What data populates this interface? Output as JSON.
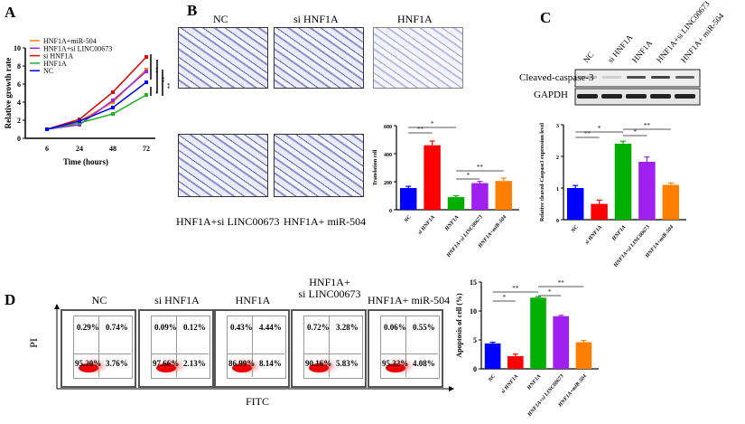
{
  "panels": {
    "A": "A",
    "B": "B",
    "C": "C",
    "D": "D"
  },
  "panelA": {
    "legend": [
      "HNF1A+miR-504",
      "HNF1A+si LINC00673",
      "si HNF1A",
      "HNF1A",
      "NC"
    ],
    "ylabel": "Relative growth rate",
    "xlabel": "Time  (hours)",
    "sig": [
      "**",
      "**",
      "*",
      "**"
    ]
  },
  "panelB": {
    "images": [
      "NC",
      "si HNF1A",
      "HNF1A",
      "HNF1A+si LINC00673",
      "HNF1A+ miR-504"
    ]
  },
  "panelC": {
    "lanes": [
      "NC",
      "si HNF1A",
      "HNF1A",
      "HNF1A+si LINC00673",
      "HNF1A+ miR-504"
    ],
    "rows": [
      "Cleaved-caspase-3",
      "GAPDH"
    ]
  },
  "panelD": {
    "titles": [
      "NC",
      "si HNF1A",
      "HNF1A",
      "HNF1A+\nsi LINC00673",
      "HNF1A+ miR-504"
    ],
    "yaxis": "PI",
    "xaxis": "FITC",
    "quadrants": [
      [
        "0.29%",
        "0.74%",
        "95.20%",
        "3.76%"
      ],
      [
        "0.09%",
        "0.12%",
        "97.66%",
        "2.13%"
      ],
      [
        "0.43%",
        "4.44%",
        "86.99%",
        "8.14%"
      ],
      [
        "0.72%",
        "3.28%",
        "90.16%",
        "5.83%"
      ],
      [
        "0.06%",
        "0.55%",
        "95.32%",
        "4.08%"
      ]
    ]
  },
  "colors": {
    "NC": "#0000ff",
    "siHNF1A": "#ff0000",
    "HNF1A": "#00b000",
    "LINC": "#a020f0",
    "miR": "#ff8000"
  },
  "chart_data": [
    {
      "type": "line",
      "x": [
        6,
        24,
        48,
        72
      ],
      "ylim": [
        0,
        10
      ],
      "yticks": [
        0,
        2,
        4,
        6,
        8,
        10
      ],
      "ylabel": "Relative growth rate",
      "xlabel": "Time  (hours)",
      "series": [
        {
          "name": "HNF1A+miR-504",
          "color": "#ff8000",
          "values": [
            1,
            1.9,
            4.0,
            7.6
          ]
        },
        {
          "name": "HNF1A+si LINC00673",
          "color": "#a020f0",
          "values": [
            1,
            1.5,
            4.2,
            7.4
          ]
        },
        {
          "name": "si HNF1A",
          "color": "#e00000",
          "values": [
            1,
            2.1,
            5.1,
            9.0
          ]
        },
        {
          "name": "HNF1A",
          "color": "#20b020",
          "values": [
            1,
            1.7,
            2.7,
            4.8
          ]
        },
        {
          "name": "NC",
          "color": "#0000ff",
          "values": [
            1,
            1.9,
            3.4,
            6.2
          ]
        }
      ]
    },
    {
      "type": "bar",
      "categories": [
        "NC",
        "si HNF1A",
        "HNF1A",
        "HNF1A+si LINC00673",
        "HNF1A+miR-504"
      ],
      "values": [
        155,
        460,
        90,
        190,
        205
      ],
      "errors": [
        12,
        30,
        10,
        12,
        20
      ],
      "ylim": [
        0,
        600
      ],
      "yticks": [
        0,
        200,
        400,
        600
      ],
      "ylabel": "Translation cell",
      "sig": [
        {
          "from": 0,
          "to": 1,
          "label": "**"
        },
        {
          "from": 0,
          "to": 2,
          "label": "*"
        },
        {
          "from": 2,
          "to": 3,
          "label": "*"
        },
        {
          "from": 2,
          "to": 4,
          "label": "**"
        }
      ]
    },
    {
      "type": "bar",
      "categories": [
        "NC",
        "si HNF1A",
        "HNF1A",
        "HNF1A+si LINC00673",
        "HNF1A+miR-504"
      ],
      "values": [
        1.0,
        0.5,
        2.4,
        1.83,
        1.1
      ],
      "errors": [
        0.08,
        0.12,
        0.08,
        0.15,
        0.06
      ],
      "ylim": [
        0,
        3
      ],
      "yticks": [
        0,
        1,
        2,
        3
      ],
      "ylabel": "Relative cleaved-Caspase3 expression level",
      "sig": [
        {
          "from": 0,
          "to": 1,
          "label": "**"
        },
        {
          "from": 0,
          "to": 2,
          "label": "*"
        },
        {
          "from": 2,
          "to": 3,
          "label": "*"
        },
        {
          "from": 2,
          "to": 4,
          "label": "**"
        }
      ]
    },
    {
      "type": "bar",
      "categories": [
        "NC",
        "si HNF1A",
        "HNF1A",
        "HNF1A+si LINC00673",
        "HNF1A+miR-504"
      ],
      "values": [
        4.4,
        2.2,
        12.3,
        9.1,
        4.6
      ],
      "errors": [
        0.2,
        0.35,
        0.15,
        0.15,
        0.3
      ],
      "ylim": [
        0,
        15
      ],
      "yticks": [
        0,
        5,
        10,
        15
      ],
      "ylabel": "Apoptosis of cell (%)",
      "sig": [
        {
          "from": 0,
          "to": 1,
          "label": "*"
        },
        {
          "from": 0,
          "to": 2,
          "label": "**"
        },
        {
          "from": 2,
          "to": 3,
          "label": "*"
        },
        {
          "from": 2,
          "to": 4,
          "label": "**"
        }
      ]
    }
  ]
}
